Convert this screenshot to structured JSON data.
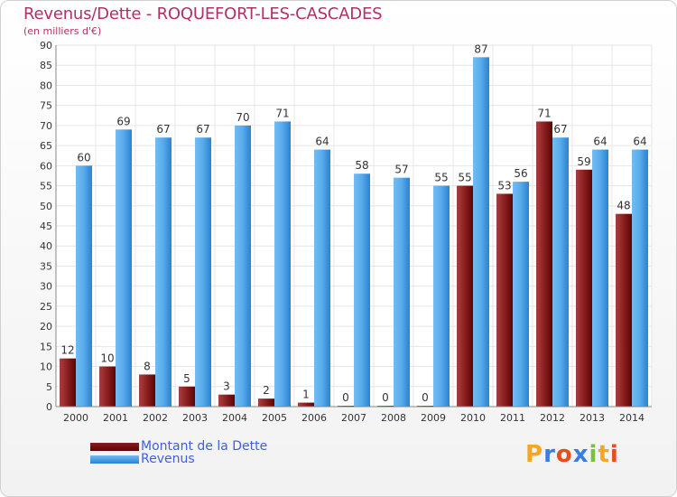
{
  "header": {
    "title": "Revenus/Dette - ROQUEFORT-LES-CASCADES",
    "subtitle": "(en milliers d'€)"
  },
  "legend": {
    "items": [
      {
        "label": "Montant de la Dette",
        "color": "#6a0a0a"
      },
      {
        "label": "Revenus",
        "color": "#4aa0e6"
      }
    ]
  },
  "logo": {
    "text": "Proxiti",
    "colors": [
      "#f5a623",
      "#3b7ddd",
      "#e84e1b",
      "#3b7ddd",
      "#7ac142",
      "#f5a623",
      "#e84e1b"
    ]
  },
  "colors": {
    "dette": "#6a0a0a",
    "dette_light": "#a83a3a",
    "revenus": "#2a7fd0",
    "revenus_light": "#6ab4f0",
    "grid": "#e6e6e6",
    "text": "#333333"
  },
  "chart_data": {
    "type": "bar",
    "title": "Revenus/Dette - ROQUEFORT-LES-CASCADES",
    "ylabel": "(en milliers d'€)",
    "xlabel": "",
    "ylim": [
      0,
      90
    ],
    "yticks": [
      0,
      5,
      10,
      15,
      20,
      25,
      30,
      35,
      40,
      45,
      50,
      55,
      60,
      65,
      70,
      75,
      80,
      85,
      90
    ],
    "grid": true,
    "legend_position": "bottom-left",
    "categories": [
      "2000",
      "2001",
      "2002",
      "2003",
      "2004",
      "2005",
      "2006",
      "2007",
      "2008",
      "2009",
      "2010",
      "2011",
      "2012",
      "2013",
      "2014"
    ],
    "series": [
      {
        "name": "Montant de la Dette",
        "values": [
          12,
          10,
          8,
          5,
          3,
          2,
          1,
          0,
          0,
          0,
          55,
          53,
          71,
          59,
          48
        ]
      },
      {
        "name": "Revenus",
        "values": [
          60,
          69,
          67,
          67,
          70,
          71,
          64,
          58,
          57,
          55,
          87,
          56,
          67,
          64,
          64
        ]
      }
    ]
  }
}
